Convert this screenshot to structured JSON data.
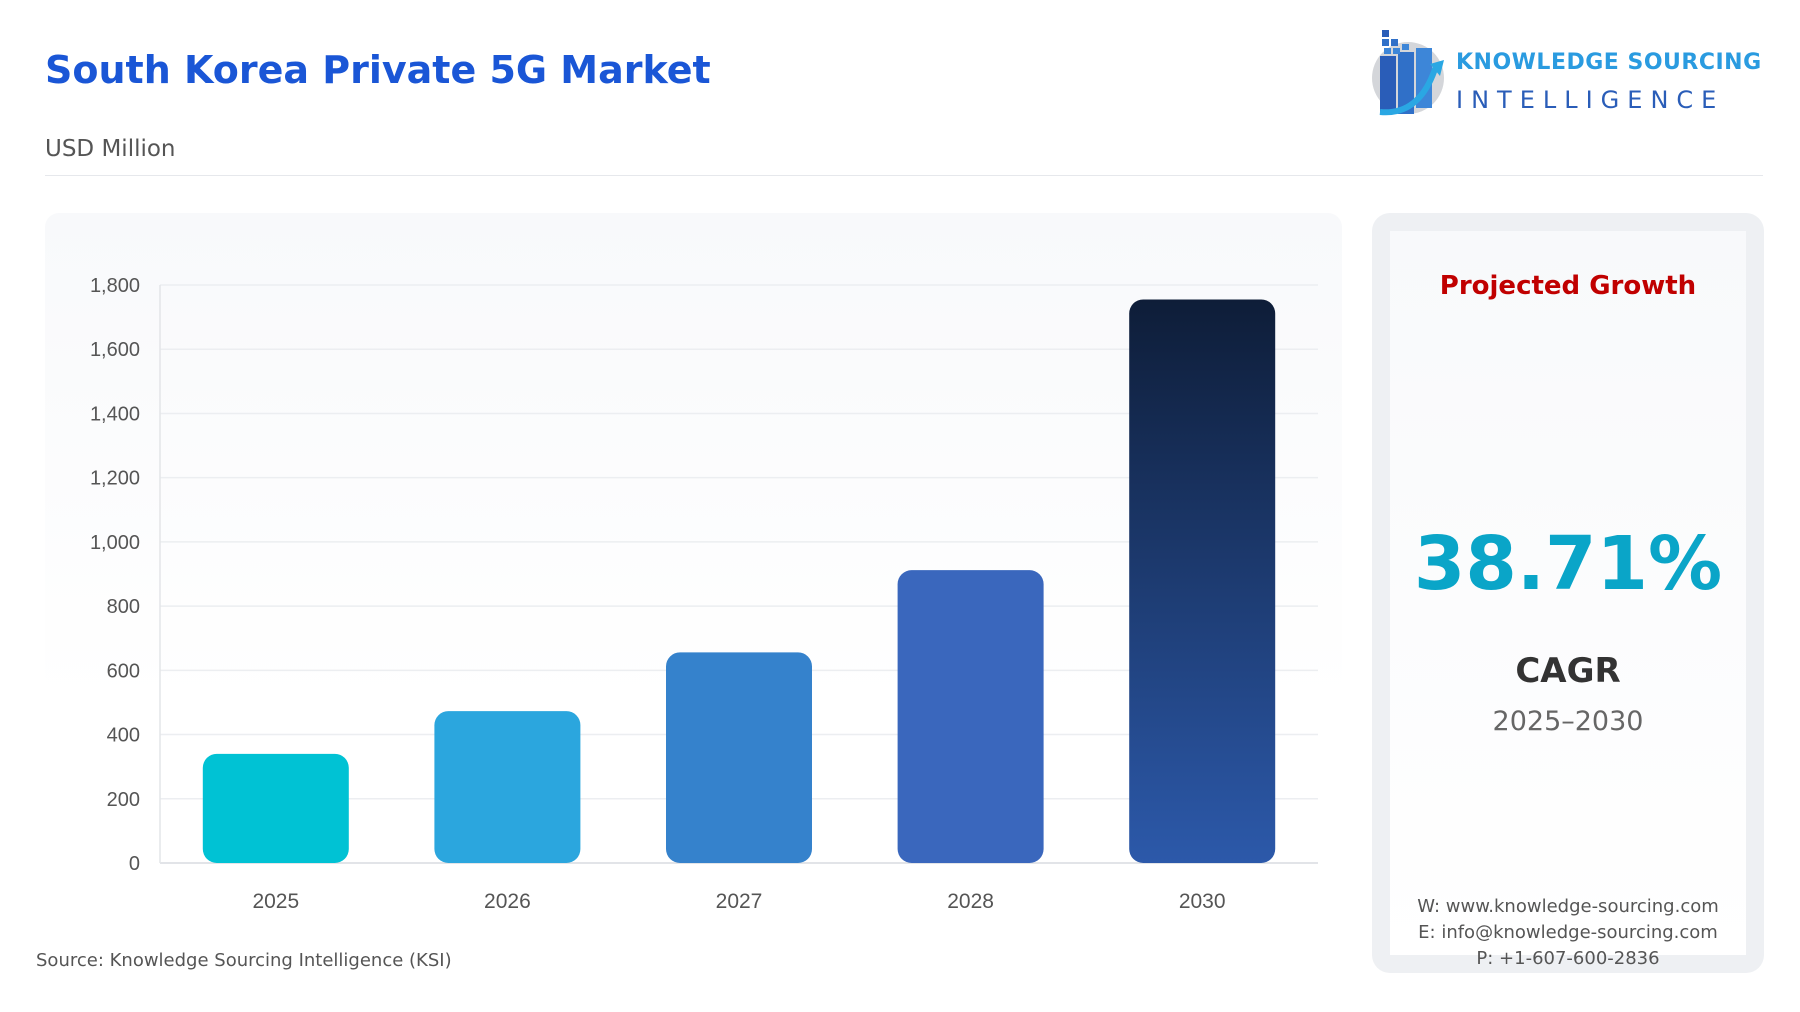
{
  "header": {
    "title": "South Korea Private 5G Market",
    "subtitle": "USD Million"
  },
  "logo": {
    "line1": "KNOWLEDGE SOURCING",
    "line2": "INTELLIGENCE"
  },
  "source": "Source: Knowledge Sourcing Intelligence (KSI)",
  "panel": {
    "heading": "Projected Growth",
    "value": "38.71%",
    "label": "CAGR",
    "period": "2025–2030",
    "website": "W: www.knowledge-sourcing.com",
    "email": "E: info@knowledge-sourcing.com",
    "phone": "P: +1-607-600-2836"
  },
  "colors": {
    "title": "#1a56d6",
    "heading": "#c00000",
    "value": "#0aa5c8"
  },
  "chart_data": {
    "type": "bar",
    "categories": [
      "2025",
      "2026",
      "2027",
      "2028",
      "2030"
    ],
    "values": [
      340,
      473,
      656,
      912,
      1755
    ],
    "ylim": [
      0,
      1800
    ],
    "yticks": [
      0,
      200,
      400,
      600,
      800,
      1000,
      1200,
      1400,
      1600,
      1800
    ],
    "grid": true,
    "bar_colors": [
      "#00c2d4",
      "#2ba6de",
      "#3582cc",
      "#3a67bd",
      [
        "#0e1d38",
        "#2c59aa"
      ]
    ]
  }
}
